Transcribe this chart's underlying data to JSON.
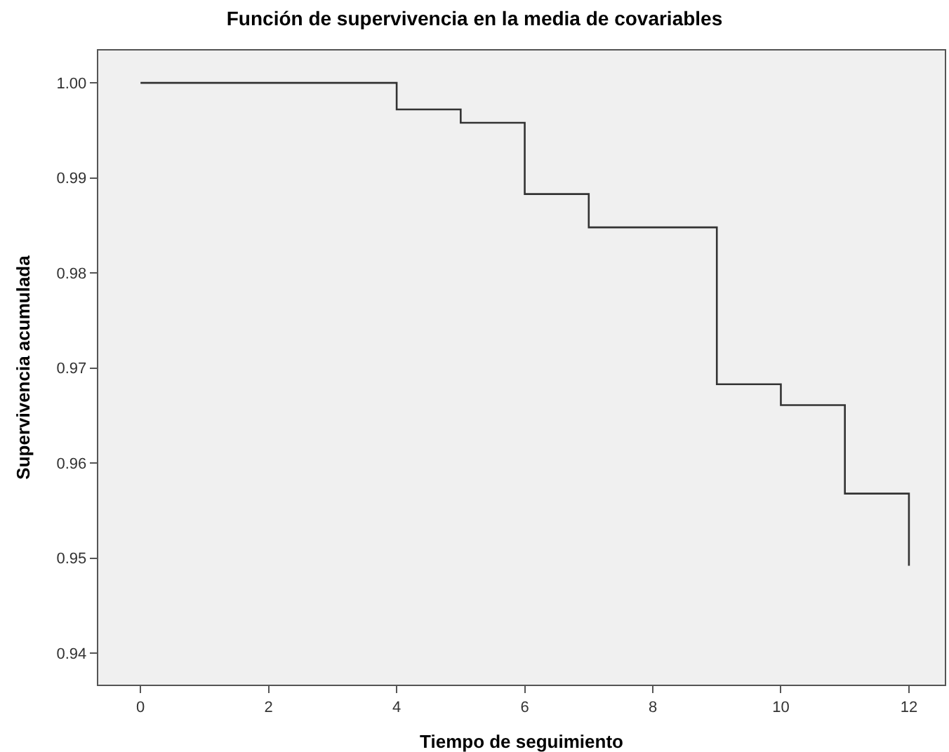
{
  "chart_data": {
    "type": "step",
    "title": "Función de supervivencia en la media de covariables",
    "xlabel": "Tiempo de seguimiento",
    "ylabel": "Supervivencia acumulada",
    "x": [
      0,
      4,
      5,
      6,
      7,
      9,
      10,
      11,
      12
    ],
    "series": [
      {
        "color": "#333333",
        "values": [
          1.0,
          0.9972,
          0.9958,
          0.9883,
          0.9848,
          0.9683,
          0.9661,
          0.9568,
          0.9492
        ]
      }
    ],
    "xlim": [
      -0.66,
      12.56
    ],
    "xticks": [
      0,
      2,
      4,
      6,
      8,
      10,
      12
    ],
    "ylim": [
      0.9367,
      1.0034
    ],
    "yticks": [
      {
        "value": 0.94,
        "label": "0.94"
      },
      {
        "value": 0.95,
        "label": "0.95"
      },
      {
        "value": 0.96,
        "label": "0.96"
      },
      {
        "value": 0.97,
        "label": "0.97"
      },
      {
        "value": 0.98,
        "label": "0.98"
      },
      {
        "value": 0.99,
        "label": "0.99"
      },
      {
        "value": 1.0,
        "label": "1.00"
      }
    ],
    "grid": false,
    "marker": "none",
    "line_style": "solid"
  }
}
